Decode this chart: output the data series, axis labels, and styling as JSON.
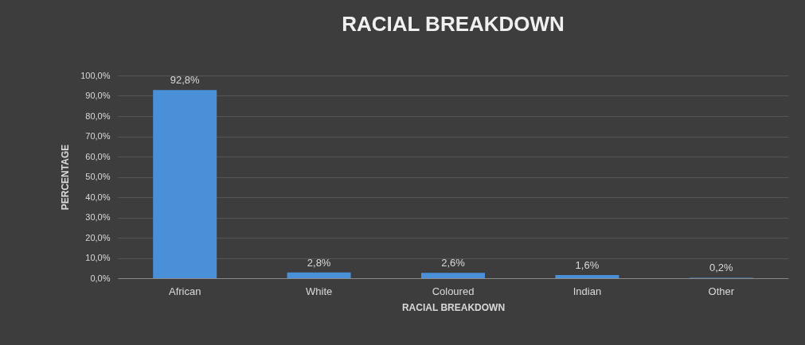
{
  "chart_data": {
    "type": "bar",
    "title": "RACIAL BREAKDOWN",
    "xlabel": "RACIAL BREAKDOWN",
    "ylabel": "PERCENTAGE",
    "categories": [
      "African",
      "White",
      "Coloured",
      "Indian",
      "Other"
    ],
    "values": [
      92.8,
      2.8,
      2.6,
      1.6,
      0.2
    ],
    "value_labels": [
      "92,8%",
      "2,8%",
      "2,6%",
      "1,6%",
      "0,2%"
    ],
    "color": "#4a90d9",
    "ylim": [
      0,
      100
    ],
    "yticks": [
      {
        "value": 0,
        "label": "0,0%"
      },
      {
        "value": 10,
        "label": "10,0%"
      },
      {
        "value": 20,
        "label": "20,0%"
      },
      {
        "value": 30,
        "label": "30,0%"
      },
      {
        "value": 40,
        "label": "40,0%"
      },
      {
        "value": 50,
        "label": "50,0%"
      },
      {
        "value": 60,
        "label": "60,0%"
      },
      {
        "value": 70,
        "label": "70,0%"
      },
      {
        "value": 80,
        "label": "80,0%"
      },
      {
        "value": 90,
        "label": "90,0%"
      },
      {
        "value": 100,
        "label": "100,0%"
      }
    ],
    "grid": "y"
  }
}
